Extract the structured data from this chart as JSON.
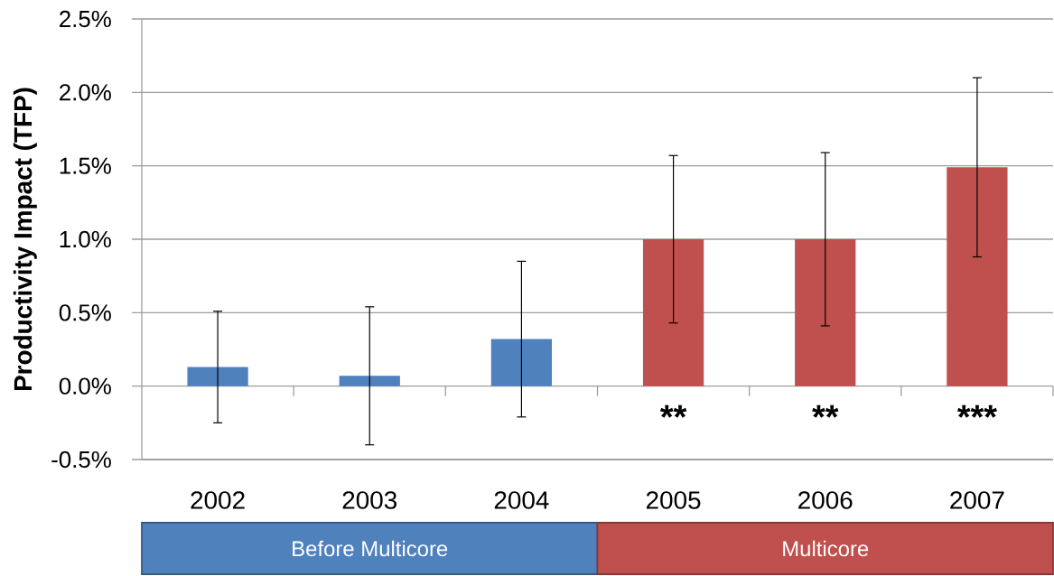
{
  "chart_data": {
    "type": "bar",
    "ylabel": "Productivity Impact (TFP)",
    "categories": [
      "2002",
      "2003",
      "2004",
      "2005",
      "2006",
      "2007"
    ],
    "series": [
      {
        "name": "Before Multicore",
        "color": "#4f81bd",
        "values": [
          0.13,
          0.07,
          0.32,
          null,
          null,
          null
        ],
        "errors": [
          0.38,
          0.47,
          0.53,
          null,
          null,
          null
        ]
      },
      {
        "name": "Multicore",
        "color": "#c0504d",
        "values": [
          null,
          null,
          null,
          1.0,
          1.0,
          1.49
        ],
        "errors": [
          null,
          null,
          null,
          0.57,
          0.59,
          0.61
        ]
      }
    ],
    "ylim": [
      -0.5,
      2.5
    ],
    "yticks": [
      {
        "value": -0.5,
        "label": "-0.5%"
      },
      {
        "value": 0,
        "label": "0.0%"
      },
      {
        "value": 0.5,
        "label": "0.5%"
      },
      {
        "value": 1.0,
        "label": "1.0%"
      },
      {
        "value": 1.5,
        "label": "1.5%"
      },
      {
        "value": 2.0,
        "label": "2.0%"
      },
      {
        "value": 2.5,
        "label": "2.5%"
      }
    ],
    "grid": "y",
    "legend": "bottom",
    "annotations": [
      "**",
      "**",
      "***"
    ]
  }
}
